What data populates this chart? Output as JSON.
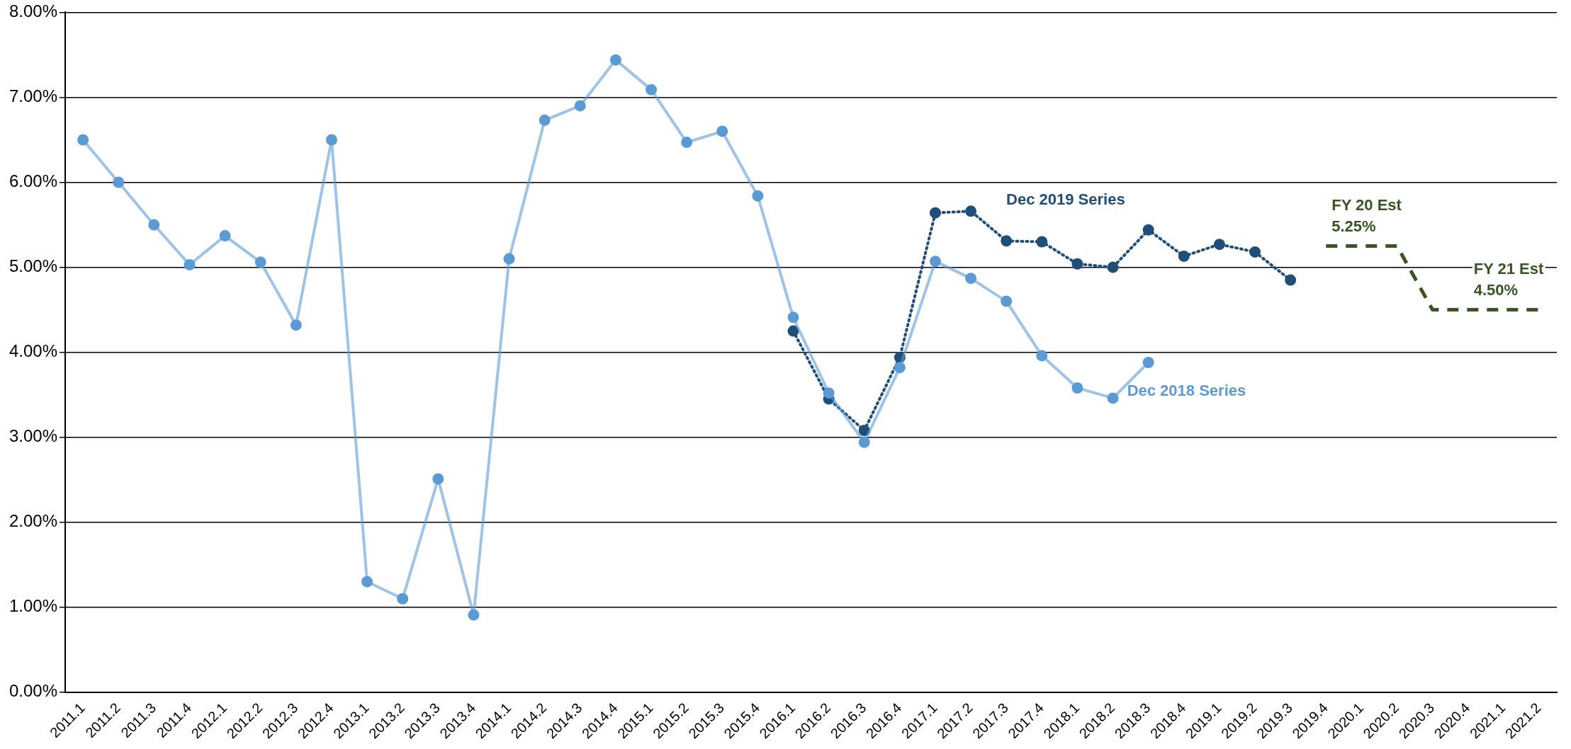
{
  "chart_data": {
    "type": "line",
    "categories": [
      "2011.1",
      "2011.2",
      "2011.3",
      "2011.4",
      "2012.1",
      "2012.2",
      "2012.3",
      "2012.4",
      "2013.1",
      "2013.2",
      "2013.3",
      "2013.4",
      "2014.1",
      "2014.2",
      "2014.3",
      "2014.4",
      "2015.1",
      "2015.2",
      "2015.3",
      "2015.4",
      "2016.1",
      "2016.2",
      "2016.3",
      "2016.4",
      "2017.1",
      "2017.2",
      "2017.3",
      "2017.4",
      "2018.1",
      "2018.2",
      "2018.3",
      "2018.4",
      "2019.1",
      "2019.2",
      "2019.3",
      "2019.4",
      "2020.1",
      "2020.2",
      "2020.3",
      "2020.4",
      "2021.1",
      "2021.2"
    ],
    "series": [
      {
        "name": "Dec 2018 Series",
        "color": "#5b9bd5",
        "line_style": "solid",
        "marker": "circle",
        "values": [
          6.5,
          6.0,
          5.5,
          5.03,
          5.37,
          5.06,
          4.32,
          6.5,
          1.3,
          1.1,
          2.51,
          0.91,
          5.1,
          6.73,
          6.9,
          7.44,
          7.09,
          6.47,
          6.6,
          5.84,
          4.41,
          3.52,
          2.94,
          3.82,
          5.07,
          4.87,
          4.6,
          3.96,
          3.58,
          3.46,
          3.88,
          null,
          null,
          null,
          null,
          null,
          null,
          null,
          null,
          null,
          null,
          null
        ]
      },
      {
        "name": "Dec 2019 Series",
        "color": "#1f4e79",
        "line_style": "dotted",
        "marker": "circle",
        "values": [
          null,
          null,
          null,
          null,
          null,
          null,
          null,
          null,
          null,
          null,
          null,
          null,
          null,
          null,
          null,
          null,
          null,
          null,
          null,
          null,
          4.25,
          3.45,
          3.08,
          3.94,
          5.64,
          5.66,
          5.31,
          5.3,
          5.04,
          5.0,
          5.44,
          5.13,
          5.27,
          5.18,
          4.85,
          null,
          null,
          null,
          null,
          null,
          null,
          null
        ]
      },
      {
        "color": "#375623",
        "line_style": "dashed",
        "marker": "none",
        "values": [
          null,
          null,
          null,
          null,
          null,
          null,
          null,
          null,
          null,
          null,
          null,
          null,
          null,
          null,
          null,
          null,
          null,
          null,
          null,
          null,
          null,
          null,
          null,
          null,
          null,
          null,
          null,
          null,
          null,
          null,
          null,
          null,
          null,
          null,
          null,
          5.25,
          5.25,
          5.25,
          4.5,
          4.5,
          4.5,
          4.5
        ]
      }
    ],
    "ylim": [
      0,
      8
    ],
    "yticks": [
      {
        "value": 0,
        "label": "0.00%"
      },
      {
        "value": 1,
        "label": "1.00%"
      },
      {
        "value": 2,
        "label": "2.00%"
      },
      {
        "value": 3,
        "label": "3.00%"
      },
      {
        "value": 4,
        "label": "4.00%"
      },
      {
        "value": 5,
        "label": "5.00%"
      },
      {
        "value": 6,
        "label": "6.00%"
      },
      {
        "value": 7,
        "label": "7.00%"
      },
      {
        "value": 8,
        "label": "8.00%"
      }
    ],
    "grid": "y",
    "legend": false,
    "annotations": [
      {
        "text": "FY 20 Est\n5.25%",
        "x": "2019.4",
        "y": 5.25
      },
      {
        "text": "FY 21 Est\n4.50%",
        "x": "2020.4",
        "y": 4.5
      }
    ]
  }
}
